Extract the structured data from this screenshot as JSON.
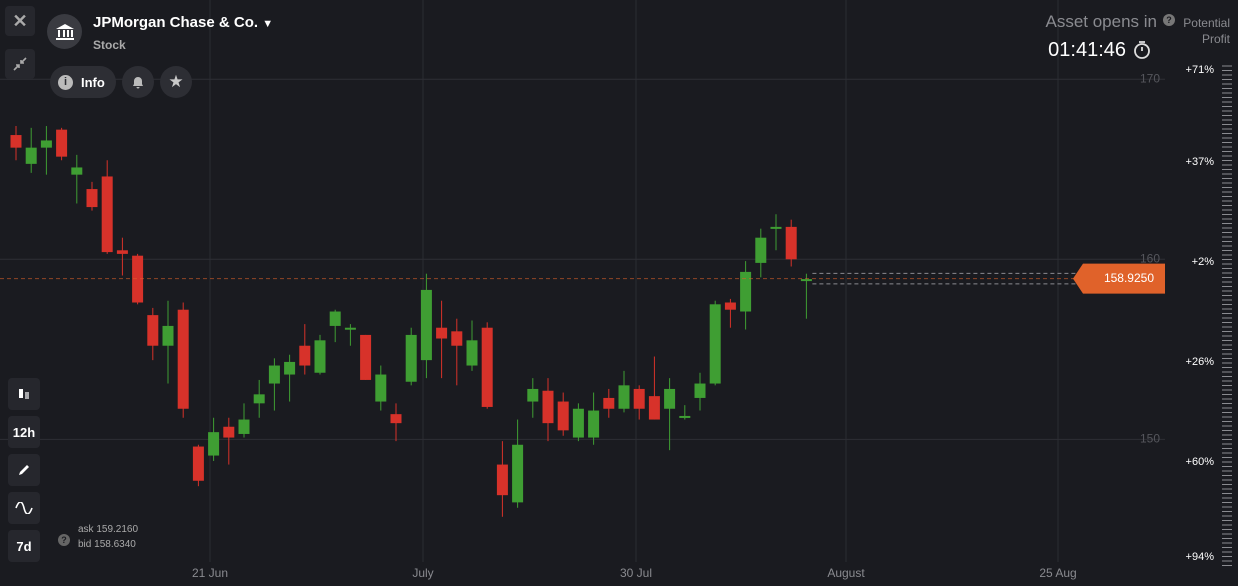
{
  "header": {
    "asset": "JPMorgan Chase & Co.",
    "asset_type": "Stock",
    "info": "Info"
  },
  "status": {
    "opens_label": "Asset opens in",
    "profit_label": "Potential Profit",
    "countdown": "01:41:46"
  },
  "toolbar": {
    "timeframe": "12h",
    "period": "7d"
  },
  "quote": {
    "ask_text": "ask",
    "bid_text": "bid"
  },
  "profit_scale": [
    "+71%",
    "+37%",
    "+2%",
    "+26%",
    "+60%",
    "+94%"
  ],
  "chart_data": {
    "type": "candlestick",
    "x_labels": [
      "21 Jun",
      "July",
      "30 Jul",
      "August",
      "25 Aug"
    ],
    "open": [
      166.9,
      165.3,
      166.2,
      167.2,
      164.7,
      163.9,
      164.6,
      160.5,
      160.2,
      156.9,
      155.2,
      157.2,
      149.6,
      149.1,
      150.7,
      150.3,
      152.0,
      153.1,
      153.6,
      155.2,
      153.7,
      156.3,
      156.1,
      155.8,
      152.1,
      151.4,
      153.2,
      154.4,
      156.2,
      156.0,
      154.1,
      156.2,
      148.6,
      146.5,
      152.1,
      152.7,
      152.1,
      150.1,
      150.1,
      152.3,
      151.7,
      152.8,
      152.4,
      151.7,
      151.2,
      152.3,
      153.1,
      157.6,
      157.1,
      159.8,
      161.7,
      161.8,
      158.8
    ],
    "high": [
      167.4,
      167.3,
      167.4,
      167.3,
      165.8,
      164.3,
      165.5,
      161.2,
      160.3,
      157.3,
      157.7,
      157.6,
      149.7,
      151.2,
      151.2,
      152.0,
      153.3,
      154.5,
      154.7,
      156.4,
      155.8,
      157.2,
      156.4,
      155.8,
      154.1,
      152.0,
      156.2,
      159.2,
      157.7,
      156.7,
      156.6,
      156.5,
      149.9,
      151.1,
      153.4,
      153.4,
      152.6,
      152.0,
      152.6,
      152.8,
      153.8,
      153.0,
      154.6,
      153.4,
      151.9,
      153.7,
      157.7,
      157.8,
      159.9,
      161.7,
      162.5,
      162.2,
      159.2
    ],
    "low": [
      165.5,
      164.8,
      164.7,
      165.5,
      163.1,
      162.7,
      160.3,
      159.1,
      157.5,
      154.4,
      153.1,
      151.2,
      147.4,
      148.8,
      148.6,
      150.1,
      151.2,
      151.6,
      152.1,
      153.6,
      153.6,
      155.4,
      155.2,
      153.3,
      151.6,
      149.9,
      153.0,
      153.4,
      153.4,
      153.0,
      153.8,
      151.7,
      145.7,
      146.2,
      151.2,
      149.9,
      150.2,
      149.9,
      149.7,
      151.2,
      151.5,
      151.1,
      151.1,
      149.4,
      151.1,
      151.6,
      153.0,
      156.2,
      156.1,
      159.0,
      160.5,
      159.6,
      156.7
    ],
    "close": [
      166.2,
      166.2,
      166.6,
      165.7,
      165.1,
      162.9,
      160.4,
      160.3,
      157.6,
      155.2,
      156.3,
      151.7,
      147.7,
      150.4,
      150.1,
      151.1,
      152.5,
      154.1,
      154.3,
      154.1,
      155.5,
      157.1,
      156.2,
      153.3,
      153.6,
      150.9,
      155.8,
      158.3,
      155.6,
      155.2,
      155.5,
      151.8,
      146.9,
      149.7,
      152.8,
      150.9,
      150.5,
      151.7,
      151.6,
      151.7,
      153.0,
      151.7,
      151.1,
      152.8,
      151.3,
      153.1,
      157.5,
      157.2,
      159.3,
      161.2,
      161.8,
      160.0,
      158.9
    ],
    "up_color": "#3f9e33",
    "down_color": "#d7322a",
    "price_color": "#e0622a",
    "ylim": [
      143.3,
      174.4
    ],
    "yticks": [
      150,
      160,
      170
    ],
    "grid": true,
    "current_price": {
      "value": 158.925,
      "label": "158.9250"
    },
    "ask": {
      "value": 159.216,
      "label": "159.2160"
    },
    "bid": {
      "value": 158.634,
      "label": "158.6340"
    }
  }
}
